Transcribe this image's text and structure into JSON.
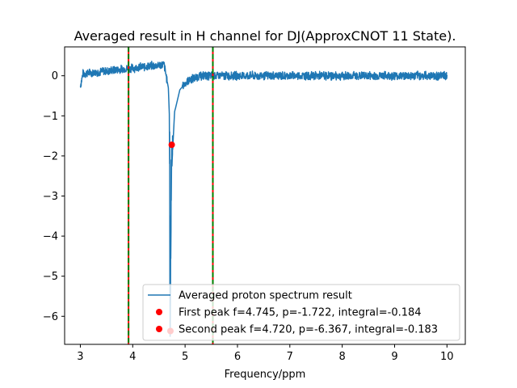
{
  "chart_data": {
    "type": "line",
    "title": "Averaged result in H channel for DJ(ApproxCNOT 11 State).",
    "xlabel": "Frequency/ppm",
    "ylabel": "",
    "xlim": [
      2.7,
      10.35
    ],
    "ylim": [
      -6.7,
      0.72
    ],
    "x_ticks": [
      3,
      4,
      5,
      6,
      7,
      8,
      9,
      10
    ],
    "x_tick_labels": [
      "3",
      "4",
      "5",
      "6",
      "7",
      "8",
      "9",
      "10"
    ],
    "y_ticks": [
      0,
      -1,
      -2,
      -3,
      -4,
      -5,
      -6
    ],
    "y_tick_labels": [
      "0",
      "−1",
      "−2",
      "−3",
      "−4",
      "−5",
      "−6"
    ],
    "grid": false,
    "legend_position": "lower right",
    "series": [
      {
        "name": "Averaged proton spectrum result",
        "color": "#1f77b4",
        "x_range": [
          3.0,
          10.0
        ],
        "key_points": [
          {
            "x": 3.0,
            "y": -0.25
          },
          {
            "x": 3.05,
            "y": 0.05
          },
          {
            "x": 4.6,
            "y": 0.28
          },
          {
            "x": 4.68,
            "y": -0.3
          },
          {
            "x": 4.7,
            "y": -1.0
          },
          {
            "x": 4.715,
            "y": -6.367
          },
          {
            "x": 4.745,
            "y": -1.722
          },
          {
            "x": 4.75,
            "y": -2.2
          },
          {
            "x": 4.8,
            "y": -0.9
          },
          {
            "x": 4.9,
            "y": -0.35
          },
          {
            "x": 5.05,
            "y": -0.12
          },
          {
            "x": 5.3,
            "y": 0.0
          },
          {
            "x": 10.0,
            "y": 0.0
          }
        ],
        "noise_amplitude": 0.12
      }
    ],
    "peaks": [
      {
        "name": "First peak f=4.745, p=-1.722, integral=-0.184",
        "x": 4.745,
        "y": -1.722,
        "color": "#ff0000"
      },
      {
        "name": "Second peak f=4.720, p=-6.367, integral=-0.183",
        "x": 4.72,
        "y": -6.367,
        "color": "#ff0000"
      }
    ],
    "vertical_lines": [
      {
        "x": 3.92,
        "style": "dashed",
        "colors": [
          "#ff0000",
          "#008000"
        ]
      },
      {
        "x": 5.53,
        "style": "dashed",
        "colors": [
          "#ff0000",
          "#008000"
        ]
      }
    ]
  }
}
